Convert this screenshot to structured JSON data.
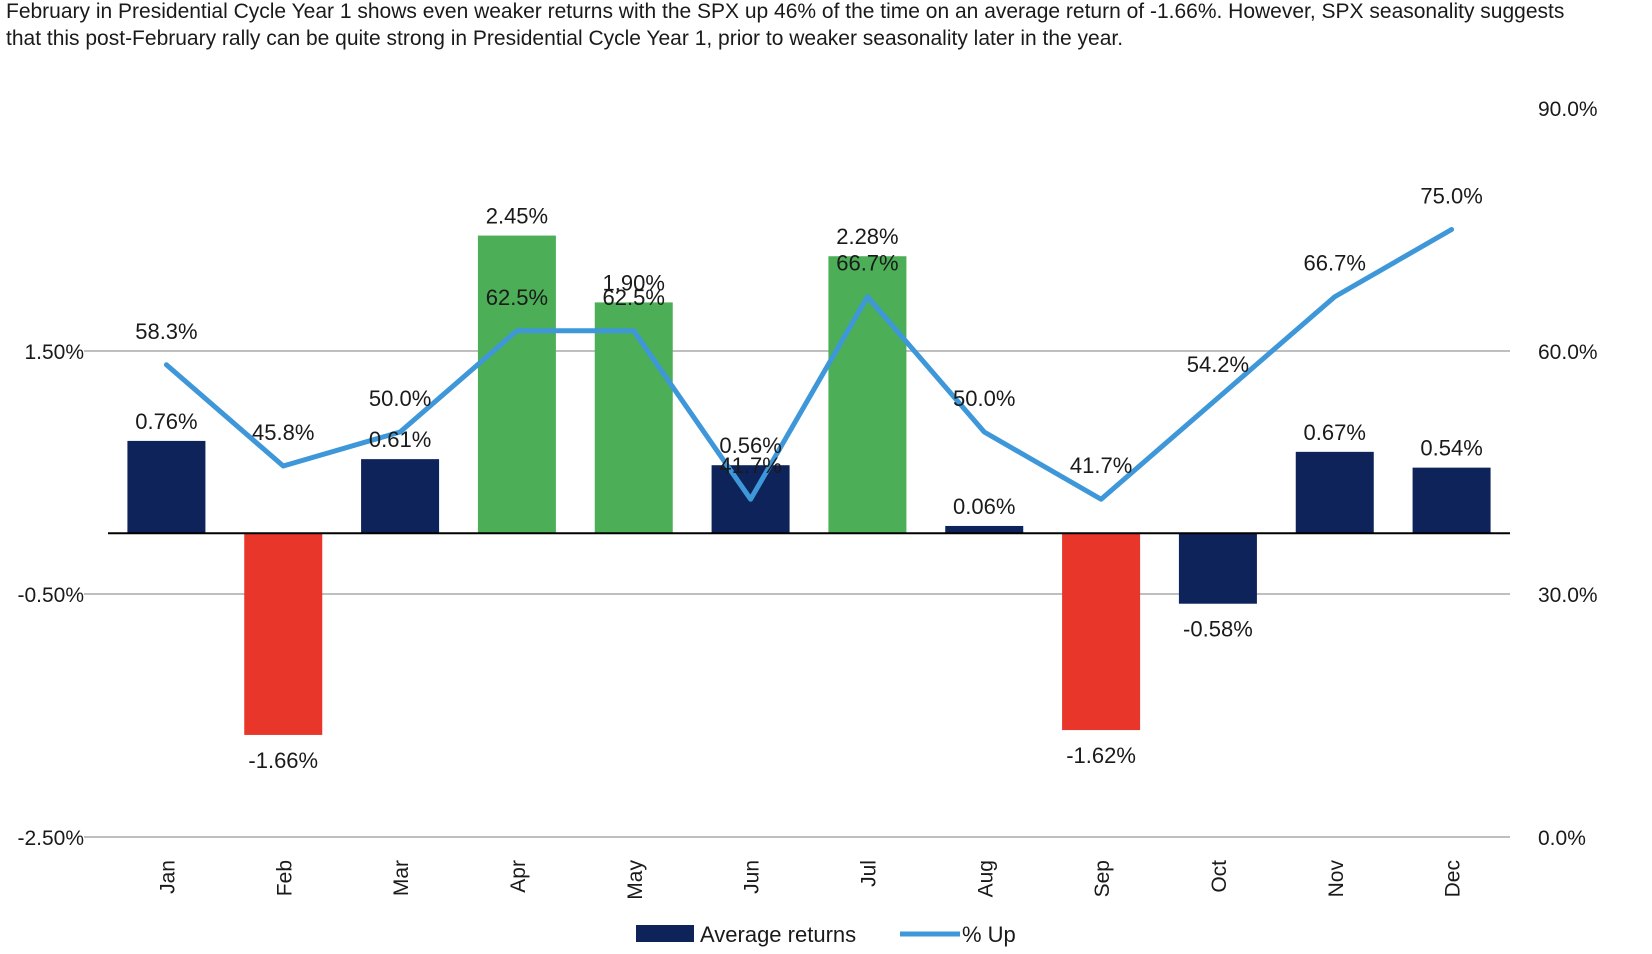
{
  "caption": {
    "line1": "February in Presidential Cycle Year 1 shows even weaker returns with the SPX up 46% of the time on an average return of -1.66%. However, SPX seasonality suggests",
    "line2": "that this post-February rally can be quite strong in Presidential Cycle Year 1, prior to weaker seasonality later in the year."
  },
  "chart_data": {
    "type": "bar",
    "categories": [
      "Jan",
      "Feb",
      "Mar",
      "Apr",
      "May",
      "Jun",
      "Jul",
      "Aug",
      "Sep",
      "Oct",
      "Nov",
      "Dec"
    ],
    "series": [
      {
        "name": "Average returns",
        "type": "bar",
        "axis": "left",
        "values": [
          0.76,
          -1.66,
          0.61,
          2.45,
          1.9,
          0.56,
          2.28,
          0.06,
          -1.62,
          -0.58,
          0.67,
          0.54
        ],
        "labels": [
          "0.76%",
          "-1.66%",
          "0.61%",
          "2.45%",
          "1.90%",
          "0.56%",
          "2.28%",
          "0.06%",
          "-1.62%",
          "-0.58%",
          "0.67%",
          "0.54%"
        ],
        "colors": [
          "#0d2359",
          "#e8372a",
          "#0d2359",
          "#4caf57",
          "#4caf57",
          "#0d2359",
          "#4caf57",
          "#0d2359",
          "#e8372a",
          "#0d2359",
          "#0d2359",
          "#0d2359"
        ]
      },
      {
        "name": "% Up",
        "type": "line",
        "axis": "right",
        "values": [
          58.3,
          45.8,
          50.0,
          62.5,
          62.5,
          41.7,
          66.7,
          50.0,
          41.7,
          54.2,
          66.7,
          75.0
        ],
        "labels": [
          "58.3%",
          "45.8%",
          "50.0%",
          "62.5%",
          "62.5%",
          "41.7%",
          "66.7%",
          "50.0%",
          "41.7%",
          "54.2%",
          "66.7%",
          "75.0%"
        ],
        "color": "#3d97d8"
      }
    ],
    "left_axis": {
      "ylim": [
        -2.5,
        3.5
      ],
      "ticks": [
        -2.5,
        -0.5,
        1.5
      ],
      "tick_labels": [
        "-2.50%",
        "-0.50%",
        "1.50%"
      ]
    },
    "right_axis": {
      "ylim": [
        0,
        90
      ],
      "ticks": [
        0,
        30,
        60,
        90
      ],
      "tick_labels": [
        "0.0%",
        "30.0%",
        "60.0%",
        "90.0%"
      ]
    },
    "legend": {
      "position": "bottom",
      "items": [
        "Average returns",
        "% Up"
      ],
      "colors": [
        "#0d2359",
        "#3d97d8"
      ]
    },
    "grid": true,
    "zero_line_color": "#000000",
    "grid_color": "#bfbfbf"
  }
}
